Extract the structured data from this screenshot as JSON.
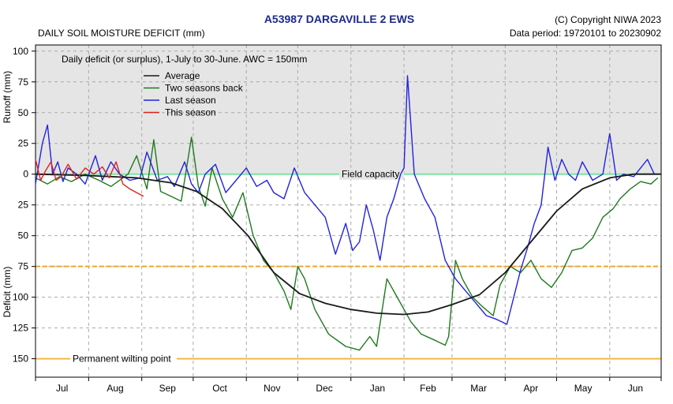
{
  "header": {
    "station": "A53987  DARGAVILLE 2 EWS",
    "copyright": "(C) Copyright NIWA  2023",
    "subtitle": "DAILY SOIL MOISTURE DEFICIT (mm)",
    "data_period": "Data period:  19720101  to  20230902"
  },
  "chart_data": {
    "type": "line",
    "note": "Daily deficit (or surplus), 1-July to 30-June.  AWC = 150mm",
    "ylabel_top": "Runoff (mm)",
    "ylabel_bottom": "Deficit (mm)",
    "x_unit": "day of season (1 = 1 July)",
    "xlim": [
      1,
      366
    ],
    "ylim": [
      -105,
      165
    ],
    "y_ticks": [
      -100,
      -75,
      -50,
      -25,
      0,
      25,
      50,
      75,
      100,
      125,
      150
    ],
    "y_tick_labels": [
      "100",
      "75",
      "50",
      "25",
      "0",
      "25",
      "50",
      "75",
      "100",
      "125",
      "150"
    ],
    "months": [
      "Jul",
      "Aug",
      "Sep",
      "Oct",
      "Nov",
      "Dec",
      "Jan",
      "Feb",
      "Mar",
      "Apr",
      "May",
      "Jun"
    ],
    "month_starts": [
      1,
      32,
      63,
      93,
      124,
      154,
      185,
      216,
      244,
      275,
      305,
      336,
      366
    ],
    "reference_lines": [
      {
        "label": "Field capacity",
        "value": 0,
        "color": "#7fe3a6"
      },
      {
        "label": "",
        "value": 75,
        "color": "#f5a623",
        "dashed": true
      },
      {
        "label": "Permanent wilting point",
        "value": 150,
        "color": "#f5b642"
      }
    ],
    "grid": true,
    "legend_position": "top-left",
    "series": [
      {
        "name": "Average",
        "color": "#1a1a1a",
        "x": [
          1,
          30,
          60,
          80,
          95,
          110,
          125,
          140,
          155,
          170,
          185,
          200,
          216,
          230,
          244,
          260,
          275,
          290,
          305,
          320,
          336,
          350,
          366
        ],
        "y": [
          0,
          1,
          3,
          7,
          14,
          28,
          50,
          80,
          97,
          105,
          110,
          113,
          114,
          112,
          106,
          98,
          80,
          55,
          30,
          12,
          3,
          0,
          0
        ]
      },
      {
        "name": "Two seasons back",
        "color": "#1f7a1f",
        "x": [
          1,
          8,
          15,
          22,
          30,
          38,
          45,
          55,
          60,
          66,
          70,
          74,
          80,
          86,
          92,
          96,
          100,
          104,
          110,
          116,
          122,
          128,
          134,
          140,
          146,
          150,
          154,
          158,
          164,
          172,
          182,
          190,
          196,
          200,
          206,
          212,
          220,
          226,
          234,
          240,
          242,
          246,
          250,
          256,
          262,
          268,
          272,
          278,
          284,
          290,
          296,
          302,
          308,
          314,
          320,
          326,
          332,
          338,
          342,
          348,
          354,
          360,
          364
        ],
        "y": [
          3,
          8,
          2,
          6,
          0,
          5,
          10,
          0,
          -15,
          12,
          -28,
          14,
          18,
          22,
          -30,
          10,
          26,
          -5,
          20,
          35,
          15,
          50,
          70,
          80,
          95,
          110,
          75,
          85,
          110,
          130,
          140,
          143,
          132,
          140,
          85,
          100,
          120,
          130,
          135,
          139,
          132,
          70,
          85,
          100,
          108,
          115,
          90,
          75,
          80,
          70,
          85,
          92,
          80,
          62,
          60,
          52,
          35,
          28,
          20,
          12,
          6,
          8,
          3
        ]
      },
      {
        "name": "Last season",
        "color": "#2323e0",
        "x": [
          1,
          5,
          8,
          11,
          14,
          17,
          20,
          25,
          30,
          36,
          40,
          45,
          50,
          56,
          62,
          66,
          72,
          78,
          82,
          88,
          92,
          96,
          100,
          106,
          112,
          118,
          124,
          130,
          136,
          140,
          146,
          152,
          158,
          164,
          170,
          176,
          182,
          186,
          190,
          194,
          198,
          202,
          206,
          210,
          214,
          216,
          218,
          222,
          228,
          234,
          240,
          246,
          252,
          258,
          264,
          270,
          276,
          280,
          284,
          288,
          292,
          296,
          300,
          304,
          308,
          312,
          316,
          320,
          326,
          332,
          336,
          340,
          344,
          350,
          354,
          358,
          362
        ],
        "y": [
          8,
          -25,
          -40,
          0,
          -10,
          6,
          -5,
          0,
          8,
          -15,
          5,
          -10,
          0,
          5,
          3,
          -18,
          5,
          2,
          10,
          -10,
          8,
          15,
          0,
          -8,
          15,
          5,
          -5,
          10,
          5,
          15,
          20,
          -5,
          15,
          25,
          35,
          65,
          40,
          62,
          55,
          25,
          45,
          70,
          35,
          20,
          0,
          -5,
          -80,
          0,
          20,
          35,
          70,
          85,
          95,
          105,
          115,
          118,
          122,
          100,
          78,
          60,
          40,
          25,
          -22,
          5,
          -12,
          0,
          5,
          -10,
          5,
          0,
          -33,
          5,
          0,
          2,
          -5,
          -12,
          0
        ]
      },
      {
        "name": "This season",
        "color": "#e02020",
        "x": [
          1,
          4,
          7,
          10,
          13,
          16,
          20,
          25,
          30,
          35,
          40,
          44,
          48,
          52,
          56,
          60,
          64
        ],
        "y": [
          -12,
          5,
          -3,
          -10,
          5,
          2,
          -8,
          4,
          -5,
          0,
          -6,
          3,
          -10,
          8,
          12,
          15,
          18
        ]
      }
    ]
  }
}
